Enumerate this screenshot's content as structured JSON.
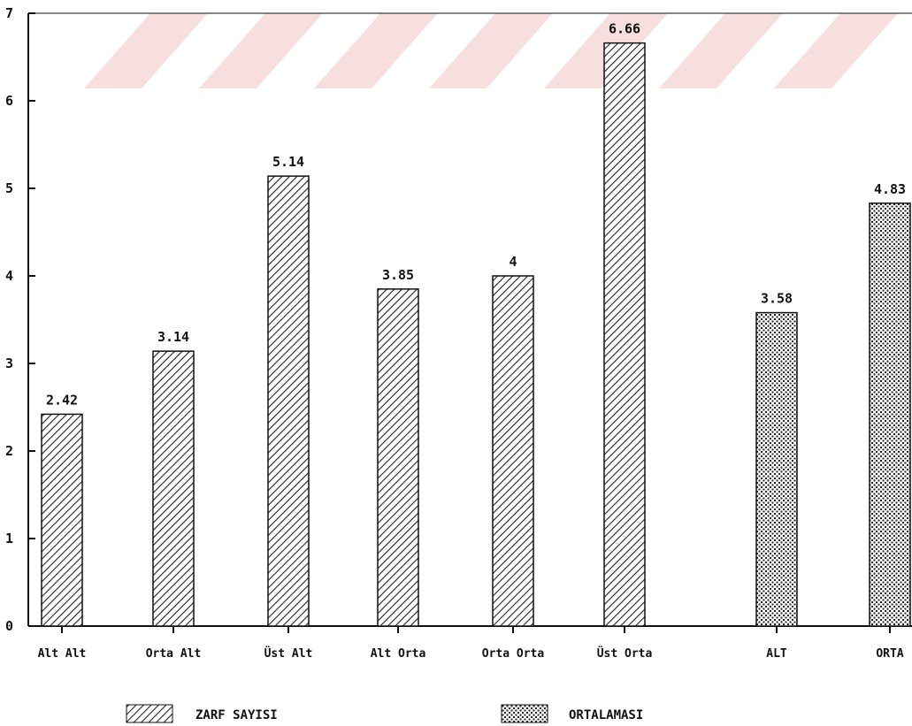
{
  "chart_data": {
    "type": "bar",
    "categories": [
      "Alt Alt",
      "Orta Alt",
      "Üst Alt",
      "Alt Orta",
      "Orta Orta",
      "Üst Orta",
      "ALT",
      "ORTA"
    ],
    "series": [
      {
        "name": "ZARF SAYISI",
        "values": [
          2.42,
          3.14,
          5.14,
          3.85,
          4,
          6.66,
          null,
          null
        ]
      },
      {
        "name": "ORTALAMASI",
        "values": [
          null,
          null,
          null,
          null,
          null,
          null,
          3.58,
          4.83
        ]
      }
    ],
    "data_labels": [
      "2.42",
      "3.14",
      "5.14",
      "3.85",
      "4",
      "6.66",
      "3.58",
      "4.83"
    ],
    "yticks": [
      0,
      1,
      2,
      3,
      4,
      5,
      6,
      7
    ],
    "ylim": [
      0,
      7
    ],
    "title": "",
    "xlabel": "",
    "ylabel": "",
    "grid": false,
    "legend_position": "bottom",
    "colors": {
      "axis": "#111111",
      "bar_fill": "#ffffff",
      "pattern": "#222222",
      "watermark": "#f6c9c9"
    }
  }
}
